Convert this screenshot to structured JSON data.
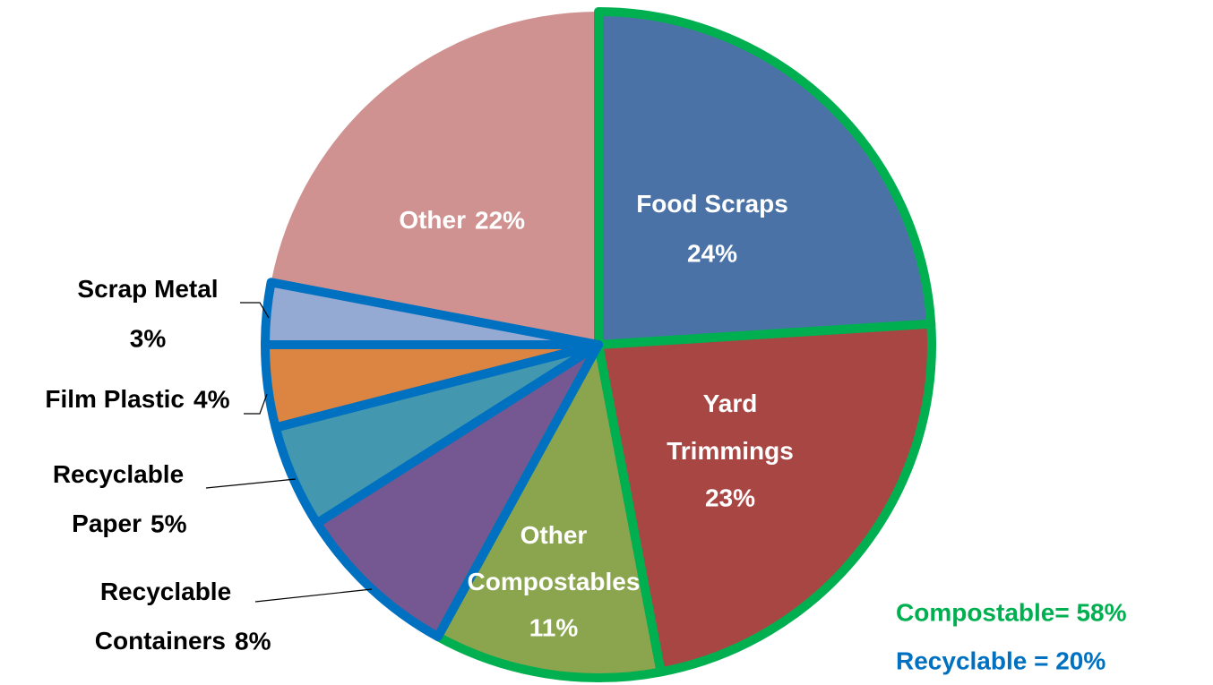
{
  "chart_data": {
    "type": "pie",
    "categories": [
      "Food Scraps",
      "Yard Trimmings",
      "Other Compostables",
      "Recyclable Containers",
      "Recyclable Paper",
      "Film Plastic",
      "Scrap Metal",
      "Other"
    ],
    "values": [
      24,
      23,
      11,
      8,
      5,
      4,
      3,
      22
    ],
    "value_labels": [
      "24%",
      "23%",
      "11%",
      "8%",
      "5%",
      "4%",
      "3%",
      "22%"
    ],
    "colors": [
      "#4a72a6",
      "#a84644",
      "#8ba54f",
      "#755891",
      "#4398b0",
      "#dc8442",
      "#95aad3",
      "#d09291"
    ],
    "outline_colors": [
      "#00b050",
      "#00b050",
      "#00b050",
      "#0070c0",
      "#0070c0",
      "#0070c0",
      "#0070c0",
      null
    ],
    "annotations": [
      {
        "text": "Compostable= 58%",
        "color": "#00b050"
      },
      {
        "text": "Recyclable = 20%",
        "color": "#0070c0"
      }
    ]
  }
}
